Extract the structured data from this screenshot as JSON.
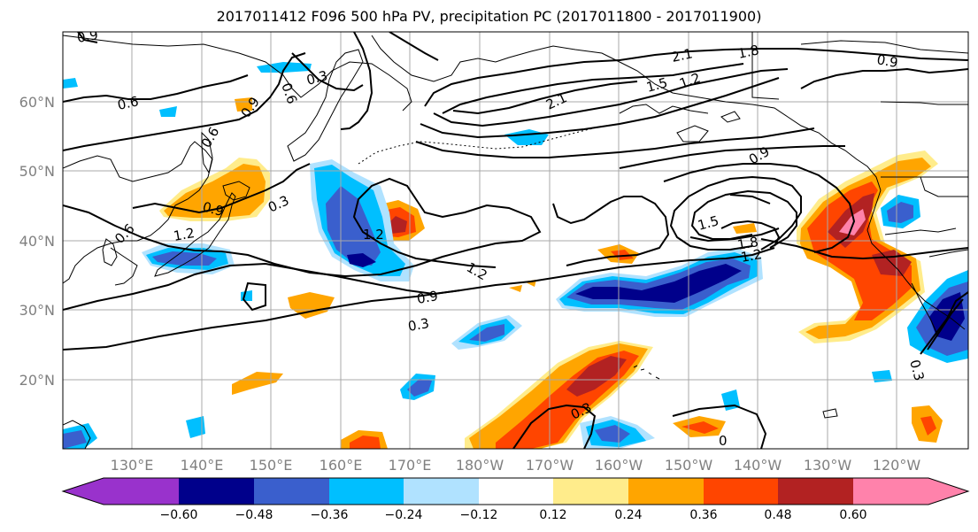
{
  "title": "2017011412 F096 500 hPa PV, precipitation PC (2017011800 - 2017011900)",
  "axes": {
    "lat_labels": [
      "20°N",
      "30°N",
      "40°N",
      "50°N",
      "60°N"
    ],
    "lon_labels": [
      "130°E",
      "140°E",
      "150°E",
      "160°E",
      "170°E",
      "180°W",
      "170°W",
      "160°W",
      "150°W",
      "140°W",
      "130°W",
      "120°W"
    ]
  },
  "colorbar": {
    "ticks": [
      "−0.60",
      "−0.48",
      "−0.36",
      "−0.24",
      "−0.12",
      "0.12",
      "0.24",
      "0.36",
      "0.48",
      "0.60"
    ],
    "colors": [
      "#9932cc",
      "#00008b",
      "#3a5fcd",
      "#00bfff",
      "#b0e2ff",
      "#ffffff",
      "#ffec8b",
      "#ffa500",
      "#ff4500",
      "#b22222",
      "#ff82ab"
    ]
  },
  "contour_labels": [
    {
      "text": "0.9"
    },
    {
      "text": "0.6"
    },
    {
      "text": "0.6"
    },
    {
      "text": "0.3"
    },
    {
      "text": "0.9"
    },
    {
      "text": "0.6"
    },
    {
      "text": "0.9"
    },
    {
      "text": "0.3"
    },
    {
      "text": "1.2"
    },
    {
      "text": "1.2"
    },
    {
      "text": "1.2"
    },
    {
      "text": "0.9"
    },
    {
      "text": "0.3"
    },
    {
      "text": "2.1"
    },
    {
      "text": "2.1"
    },
    {
      "text": "1.8"
    },
    {
      "text": "1.5"
    },
    {
      "text": "1.2"
    },
    {
      "text": "0.9"
    },
    {
      "text": "0.9"
    },
    {
      "text": "1.5"
    },
    {
      "text": "1.8"
    },
    {
      "text": "1.2"
    },
    {
      "text": "0.3"
    },
    {
      "text": "0.3"
    },
    {
      "text": "0"
    },
    {
      "text": "0.6"
    }
  ]
}
